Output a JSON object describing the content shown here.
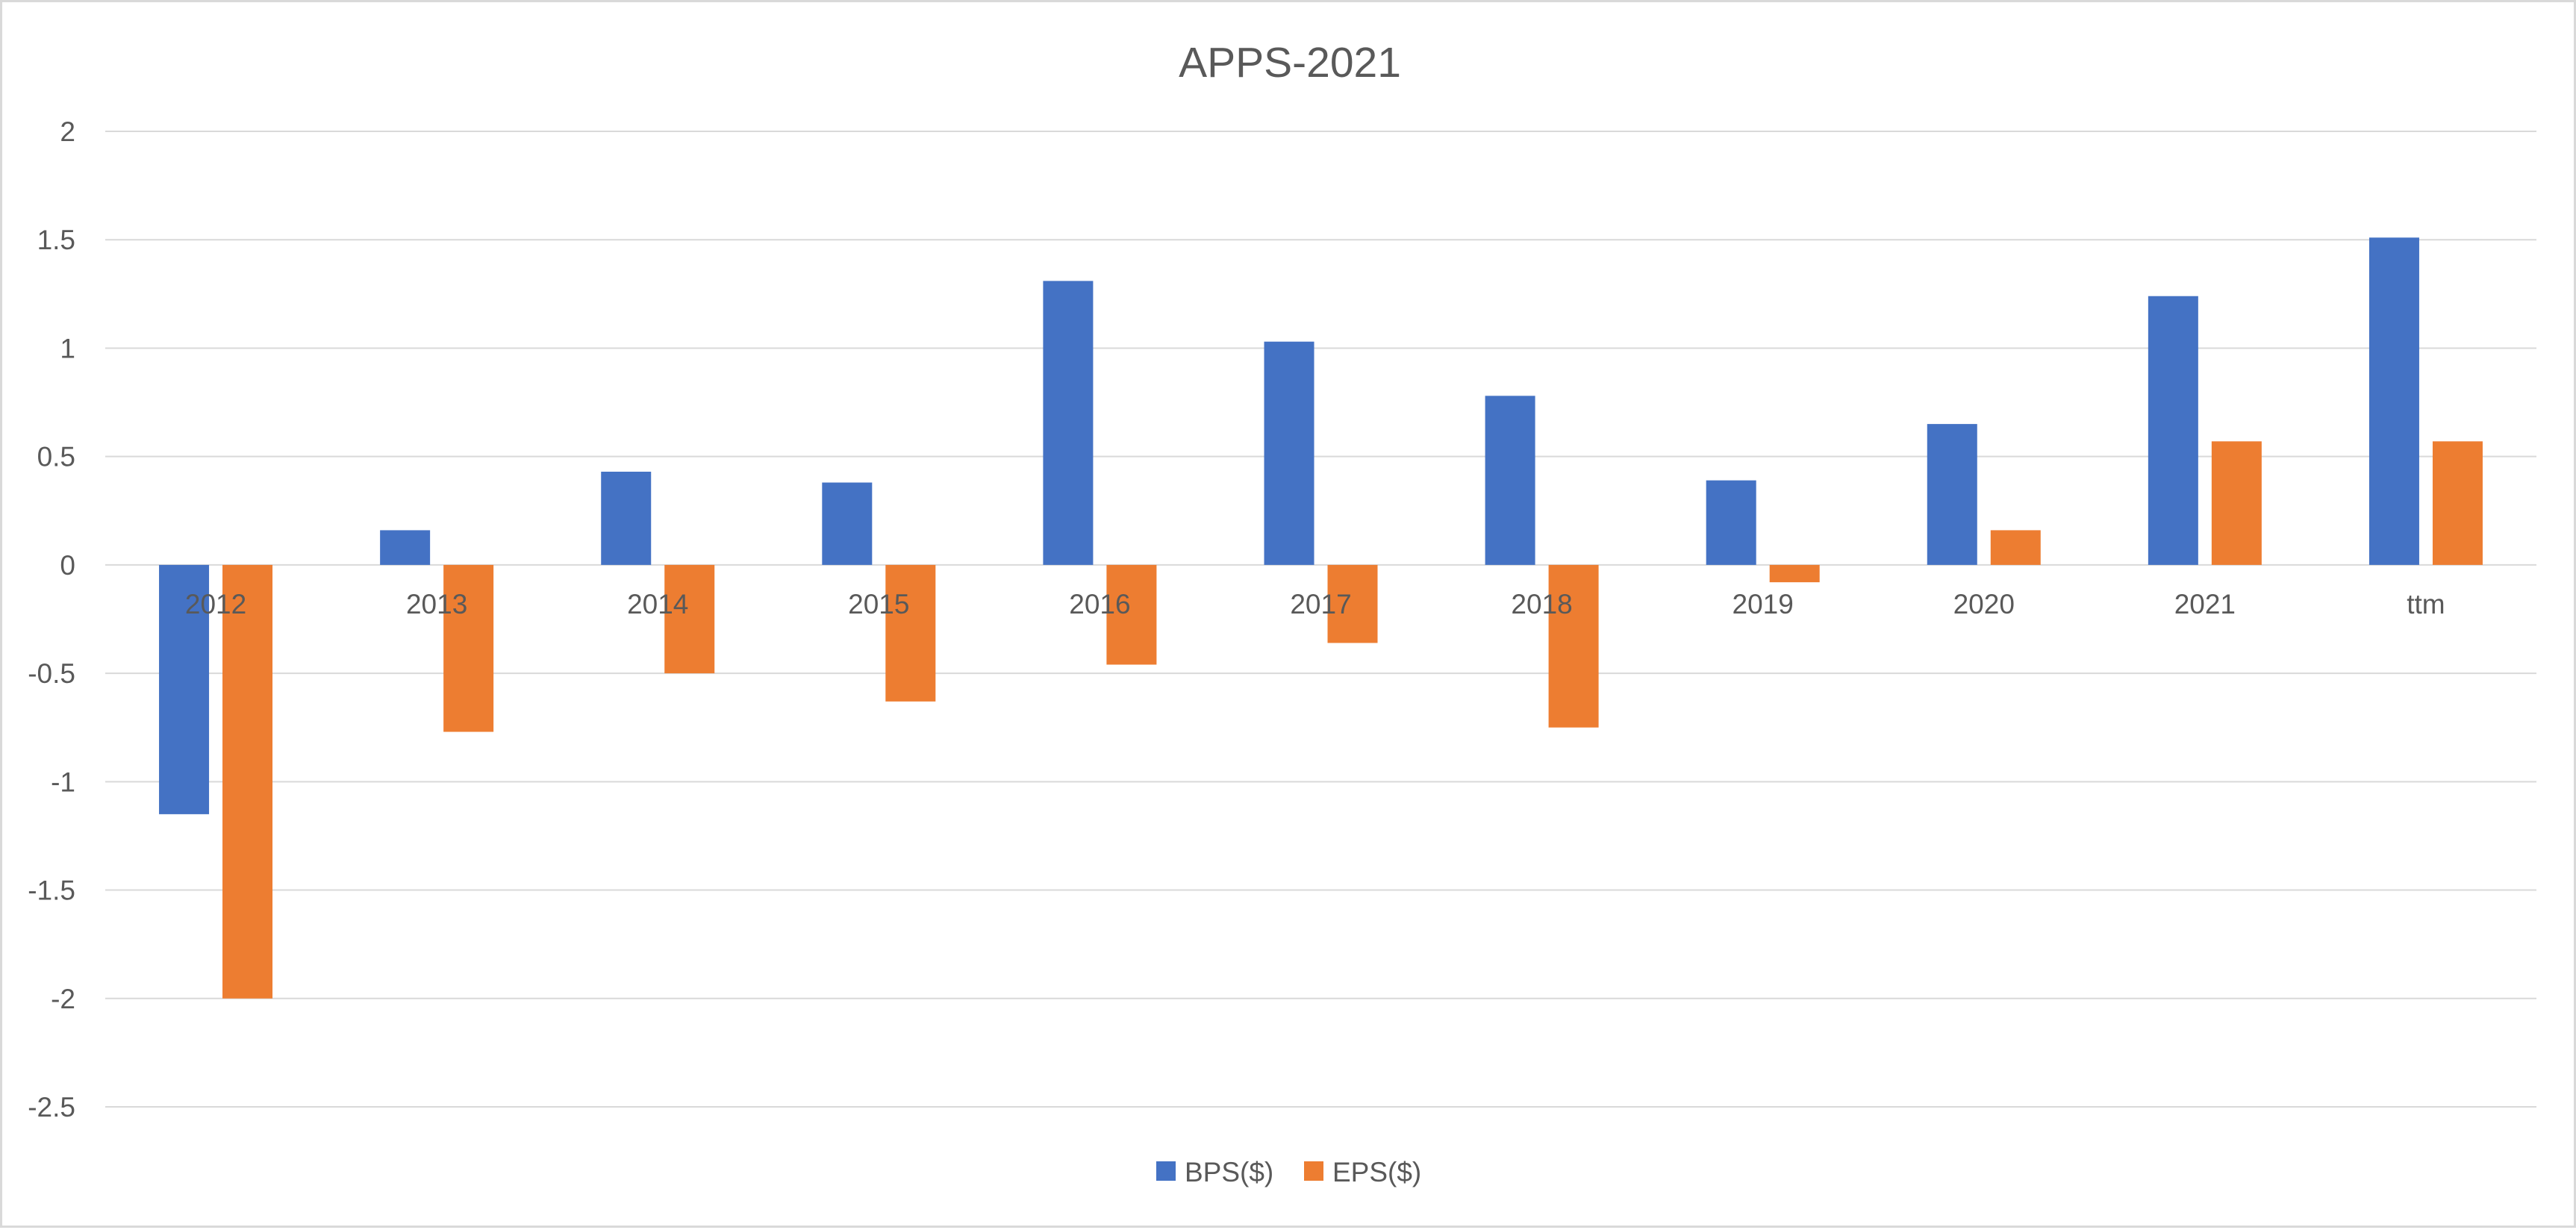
{
  "chart_data": {
    "type": "bar",
    "title": "APPS-2021",
    "xlabel": "",
    "ylabel": "",
    "categories": [
      "2012",
      "2013",
      "2014",
      "2015",
      "2016",
      "2017",
      "2018",
      "2019",
      "2020",
      "2021",
      "ttm"
    ],
    "series": [
      {
        "name": "BPS($)",
        "color": "#4472C4",
        "values": [
          -1.15,
          0.16,
          0.43,
          0.38,
          1.31,
          1.03,
          0.78,
          0.39,
          0.65,
          1.24,
          1.51
        ]
      },
      {
        "name": "EPS($)",
        "color": "#ED7D31",
        "values": [
          -2.0,
          -0.77,
          -0.5,
          -0.63,
          -0.46,
          -0.36,
          -0.75,
          -0.08,
          0.16,
          0.57,
          0.57
        ]
      }
    ],
    "ylim": [
      -2.5,
      2
    ],
    "yticks": [
      2,
      1.5,
      1,
      0.5,
      0,
      -0.5,
      -1,
      -1.5,
      -2,
      -2.5
    ],
    "grid": true,
    "legend_position": "bottom"
  }
}
